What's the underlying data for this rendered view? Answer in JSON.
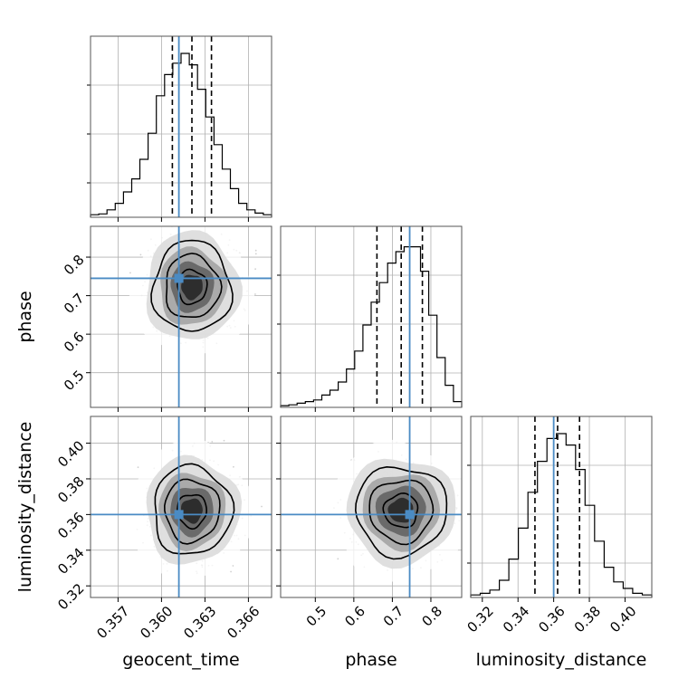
{
  "chart_data": {
    "type": "corner",
    "parameters": [
      "geocent_time",
      "phase",
      "luminosity_distance"
    ],
    "truths": {
      "geocent_time": 0.3612,
      "phase": 0.745,
      "luminosity_distance": 0.36
    },
    "quantiles": {
      "geocent_time": [
        0.36075,
        0.3621,
        0.36345
      ],
      "phase": [
        0.66,
        0.723,
        0.778
      ],
      "luminosity_distance": [
        0.3495,
        0.3622,
        0.3745
      ]
    },
    "ranges": {
      "geocent_time": [
        0.3551,
        0.3676
      ],
      "phase": [
        0.41,
        0.88
      ],
      "luminosity_distance": [
        0.3135,
        0.415
      ]
    },
    "ticks": {
      "geocent_time": [
        "0.357",
        "0.360",
        "0.363",
        "0.366"
      ],
      "phase": [
        "0.5",
        "0.6",
        "0.7",
        "0.8"
      ],
      "luminosity_distance": [
        "0.32",
        "0.34",
        "0.36",
        "0.38",
        "0.40"
      ]
    },
    "histograms": {
      "geocent_time": [
        0.01,
        0.015,
        0.04,
        0.08,
        0.15,
        0.23,
        0.35,
        0.51,
        0.74,
        0.87,
        0.94,
        1.0,
        0.93,
        0.78,
        0.61,
        0.44,
        0.29,
        0.17,
        0.08,
        0.04,
        0.02,
        0.01
      ],
      "phase": [
        0.005,
        0.01,
        0.02,
        0.03,
        0.04,
        0.07,
        0.1,
        0.15,
        0.23,
        0.34,
        0.5,
        0.64,
        0.76,
        0.88,
        0.95,
        0.98,
        0.98,
        0.83,
        0.56,
        0.3,
        0.13,
        0.03
      ],
      "luminosity_distance": [
        0.01,
        0.02,
        0.04,
        0.1,
        0.23,
        0.42,
        0.64,
        0.83,
        0.97,
        1.0,
        0.93,
        0.78,
        0.56,
        0.34,
        0.18,
        0.09,
        0.05,
        0.02,
        0.01
      ]
    },
    "grid": true
  }
}
